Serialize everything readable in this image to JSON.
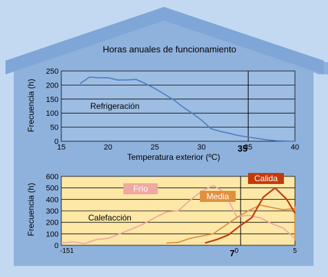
{
  "title": "Horas anuales de funcionamiento",
  "chart_data": [
    {
      "type": "line",
      "title": "Horas anuales de funcionamiento",
      "xlabel": "Temperatura exterior (ºC)",
      "ylabel": "Frecuencia (h)",
      "xlim": [
        15,
        40
      ],
      "ylim": [
        0,
        250
      ],
      "xticks": [
        "15",
        "20",
        "25",
        "30",
        "35",
        "40"
      ],
      "yticks": [
        "0",
        "50",
        "100",
        "150",
        "200",
        "250"
      ],
      "highlight_tick": "35",
      "vline_x": 35,
      "grid": true,
      "series": [
        {
          "name": "Refrigeración",
          "color": "#4a7fc0",
          "x": [
            17,
            18,
            19,
            20,
            21,
            22,
            23,
            24,
            25,
            26,
            27,
            28,
            29,
            30,
            31,
            32,
            33,
            34,
            35,
            36,
            37,
            38,
            39,
            40
          ],
          "y": [
            205,
            228,
            226,
            226,
            218,
            218,
            220,
            205,
            188,
            168,
            148,
            122,
            100,
            75,
            45,
            35,
            28,
            20,
            15,
            10,
            5,
            2,
            1,
            0
          ]
        }
      ]
    },
    {
      "type": "line",
      "xlabel": "",
      "ylabel": "Frecuencia (h)",
      "xlim": [
        -15,
        5
      ],
      "ylim": [
        0,
        600
      ],
      "xticks": [
        "-151",
        "0",
        "5"
      ],
      "yticks": [
        "0",
        "100",
        "200",
        "300",
        "400",
        "500",
        "600"
      ],
      "highlight_tick": "7",
      "vline_x": 0.35,
      "grid": true,
      "annotation": "Calefacción",
      "series": [
        {
          "name": "Frío",
          "color": "#f0a8a0",
          "x": [
            -15,
            -14,
            -13,
            -12,
            -11,
            -10,
            -9,
            -8,
            -7,
            -6,
            -5,
            -4,
            -3,
            -2,
            -1,
            0,
            1,
            2,
            3,
            4,
            5
          ],
          "y": [
            20,
            30,
            15,
            50,
            60,
            100,
            140,
            185,
            240,
            290,
            300,
            390,
            470,
            520,
            460,
            250,
            260,
            240,
            190,
            150,
            60
          ]
        },
        {
          "name": "Media",
          "color": "#e0903e",
          "x": [
            -10,
            -9,
            -8,
            -7,
            -6,
            -5,
            -4,
            -3,
            -2,
            -1,
            0,
            1,
            2,
            3,
            4,
            5
          ],
          "y": [
            20,
            25,
            60,
            80,
            100,
            170,
            240,
            300,
            350,
            330,
            310,
            320,
            340,
            150,
            90,
            40
          ],
          "x_offset": 4
        },
        {
          "name": "Calida",
          "color": "#c43a0a",
          "x": [
            -3,
            -2,
            -1,
            0,
            1,
            2,
            3,
            4,
            5
          ],
          "y": [
            20,
            50,
            90,
            170,
            240,
            420,
            500,
            400,
            280
          ],
          "x_offset": 0.3
        }
      ]
    }
  ]
}
